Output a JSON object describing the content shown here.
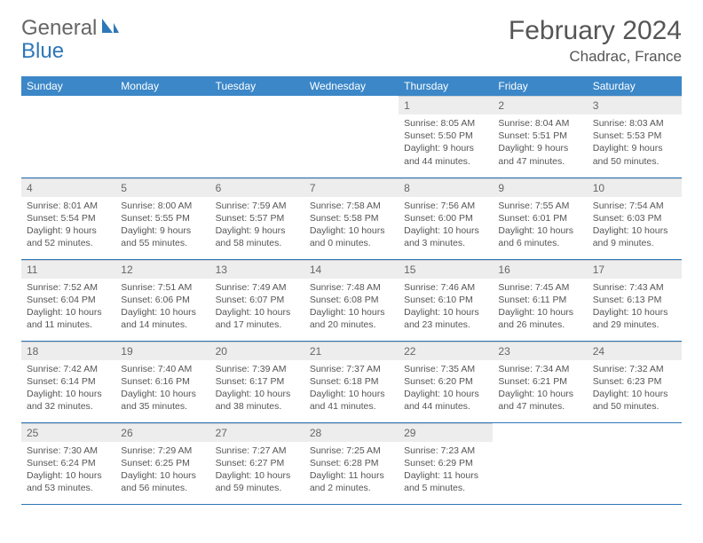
{
  "brand": {
    "general": "General",
    "blue": "Blue"
  },
  "title": "February 2024",
  "location": "Chadrac, France",
  "colors": {
    "header_bg": "#3b87c8",
    "header_text": "#ffffff",
    "daynum_bg": "#ededed",
    "border": "#2e77b8",
    "text": "#555555"
  },
  "day_headers": [
    "Sunday",
    "Monday",
    "Tuesday",
    "Wednesday",
    "Thursday",
    "Friday",
    "Saturday"
  ],
  "weeks": [
    [
      {
        "n": "",
        "sr": "",
        "ss": "",
        "dl": ""
      },
      {
        "n": "",
        "sr": "",
        "ss": "",
        "dl": ""
      },
      {
        "n": "",
        "sr": "",
        "ss": "",
        "dl": ""
      },
      {
        "n": "",
        "sr": "",
        "ss": "",
        "dl": ""
      },
      {
        "n": "1",
        "sr": "Sunrise: 8:05 AM",
        "ss": "Sunset: 5:50 PM",
        "dl": "Daylight: 9 hours and 44 minutes."
      },
      {
        "n": "2",
        "sr": "Sunrise: 8:04 AM",
        "ss": "Sunset: 5:51 PM",
        "dl": "Daylight: 9 hours and 47 minutes."
      },
      {
        "n": "3",
        "sr": "Sunrise: 8:03 AM",
        "ss": "Sunset: 5:53 PM",
        "dl": "Daylight: 9 hours and 50 minutes."
      }
    ],
    [
      {
        "n": "4",
        "sr": "Sunrise: 8:01 AM",
        "ss": "Sunset: 5:54 PM",
        "dl": "Daylight: 9 hours and 52 minutes."
      },
      {
        "n": "5",
        "sr": "Sunrise: 8:00 AM",
        "ss": "Sunset: 5:55 PM",
        "dl": "Daylight: 9 hours and 55 minutes."
      },
      {
        "n": "6",
        "sr": "Sunrise: 7:59 AM",
        "ss": "Sunset: 5:57 PM",
        "dl": "Daylight: 9 hours and 58 minutes."
      },
      {
        "n": "7",
        "sr": "Sunrise: 7:58 AM",
        "ss": "Sunset: 5:58 PM",
        "dl": "Daylight: 10 hours and 0 minutes."
      },
      {
        "n": "8",
        "sr": "Sunrise: 7:56 AM",
        "ss": "Sunset: 6:00 PM",
        "dl": "Daylight: 10 hours and 3 minutes."
      },
      {
        "n": "9",
        "sr": "Sunrise: 7:55 AM",
        "ss": "Sunset: 6:01 PM",
        "dl": "Daylight: 10 hours and 6 minutes."
      },
      {
        "n": "10",
        "sr": "Sunrise: 7:54 AM",
        "ss": "Sunset: 6:03 PM",
        "dl": "Daylight: 10 hours and 9 minutes."
      }
    ],
    [
      {
        "n": "11",
        "sr": "Sunrise: 7:52 AM",
        "ss": "Sunset: 6:04 PM",
        "dl": "Daylight: 10 hours and 11 minutes."
      },
      {
        "n": "12",
        "sr": "Sunrise: 7:51 AM",
        "ss": "Sunset: 6:06 PM",
        "dl": "Daylight: 10 hours and 14 minutes."
      },
      {
        "n": "13",
        "sr": "Sunrise: 7:49 AM",
        "ss": "Sunset: 6:07 PM",
        "dl": "Daylight: 10 hours and 17 minutes."
      },
      {
        "n": "14",
        "sr": "Sunrise: 7:48 AM",
        "ss": "Sunset: 6:08 PM",
        "dl": "Daylight: 10 hours and 20 minutes."
      },
      {
        "n": "15",
        "sr": "Sunrise: 7:46 AM",
        "ss": "Sunset: 6:10 PM",
        "dl": "Daylight: 10 hours and 23 minutes."
      },
      {
        "n": "16",
        "sr": "Sunrise: 7:45 AM",
        "ss": "Sunset: 6:11 PM",
        "dl": "Daylight: 10 hours and 26 minutes."
      },
      {
        "n": "17",
        "sr": "Sunrise: 7:43 AM",
        "ss": "Sunset: 6:13 PM",
        "dl": "Daylight: 10 hours and 29 minutes."
      }
    ],
    [
      {
        "n": "18",
        "sr": "Sunrise: 7:42 AM",
        "ss": "Sunset: 6:14 PM",
        "dl": "Daylight: 10 hours and 32 minutes."
      },
      {
        "n": "19",
        "sr": "Sunrise: 7:40 AM",
        "ss": "Sunset: 6:16 PM",
        "dl": "Daylight: 10 hours and 35 minutes."
      },
      {
        "n": "20",
        "sr": "Sunrise: 7:39 AM",
        "ss": "Sunset: 6:17 PM",
        "dl": "Daylight: 10 hours and 38 minutes."
      },
      {
        "n": "21",
        "sr": "Sunrise: 7:37 AM",
        "ss": "Sunset: 6:18 PM",
        "dl": "Daylight: 10 hours and 41 minutes."
      },
      {
        "n": "22",
        "sr": "Sunrise: 7:35 AM",
        "ss": "Sunset: 6:20 PM",
        "dl": "Daylight: 10 hours and 44 minutes."
      },
      {
        "n": "23",
        "sr": "Sunrise: 7:34 AM",
        "ss": "Sunset: 6:21 PM",
        "dl": "Daylight: 10 hours and 47 minutes."
      },
      {
        "n": "24",
        "sr": "Sunrise: 7:32 AM",
        "ss": "Sunset: 6:23 PM",
        "dl": "Daylight: 10 hours and 50 minutes."
      }
    ],
    [
      {
        "n": "25",
        "sr": "Sunrise: 7:30 AM",
        "ss": "Sunset: 6:24 PM",
        "dl": "Daylight: 10 hours and 53 minutes."
      },
      {
        "n": "26",
        "sr": "Sunrise: 7:29 AM",
        "ss": "Sunset: 6:25 PM",
        "dl": "Daylight: 10 hours and 56 minutes."
      },
      {
        "n": "27",
        "sr": "Sunrise: 7:27 AM",
        "ss": "Sunset: 6:27 PM",
        "dl": "Daylight: 10 hours and 59 minutes."
      },
      {
        "n": "28",
        "sr": "Sunrise: 7:25 AM",
        "ss": "Sunset: 6:28 PM",
        "dl": "Daylight: 11 hours and 2 minutes."
      },
      {
        "n": "29",
        "sr": "Sunrise: 7:23 AM",
        "ss": "Sunset: 6:29 PM",
        "dl": "Daylight: 11 hours and 5 minutes."
      },
      {
        "n": "",
        "sr": "",
        "ss": "",
        "dl": ""
      },
      {
        "n": "",
        "sr": "",
        "ss": "",
        "dl": ""
      }
    ]
  ]
}
